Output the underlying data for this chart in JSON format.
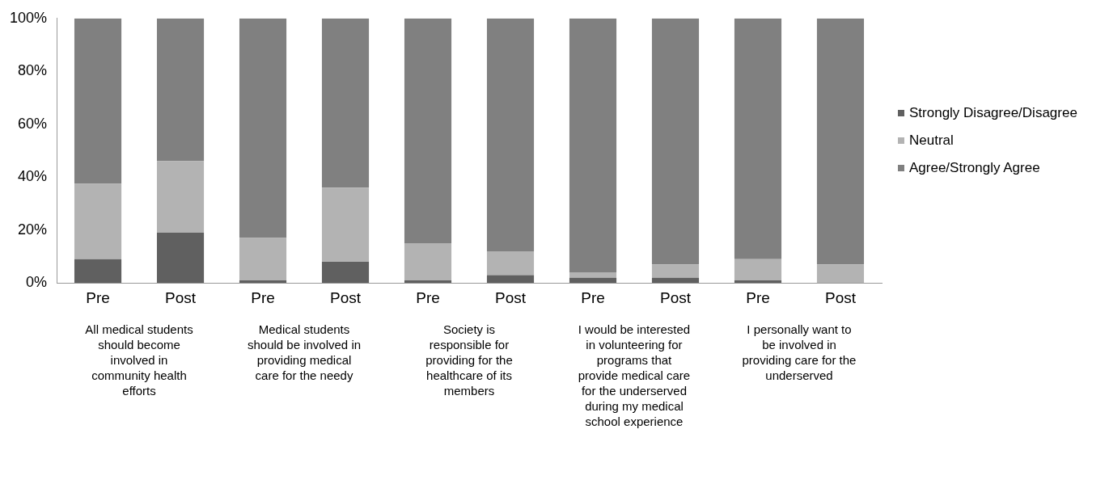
{
  "chart_data": {
    "type": "bar",
    "stacked": true,
    "categories": [
      "Pre",
      "Post",
      "Pre",
      "Post",
      "Pre",
      "Post",
      "Pre",
      "Post",
      "Pre",
      "Post"
    ],
    "series": [
      {
        "name": "Strongly Disagree/Disagree",
        "color": "#606060",
        "values": [
          9,
          19,
          1,
          8,
          1,
          3,
          2,
          2,
          1,
          0
        ]
      },
      {
        "name": "Neutral",
        "color": "#b3b3b3",
        "values": [
          28.5,
          27,
          16,
          28,
          14,
          9,
          2,
          5,
          8,
          7
        ]
      },
      {
        "name": "Agree/Strongly Agree",
        "color": "#808080",
        "values": [
          62.5,
          54,
          83,
          64,
          85,
          88,
          96,
          93,
          91,
          93
        ]
      }
    ],
    "ylim": [
      0,
      100
    ],
    "yticks": [
      {
        "value": 0,
        "label": "0%"
      },
      {
        "value": 20,
        "label": "20%"
      },
      {
        "value": 40,
        "label": "40%"
      },
      {
        "value": 60,
        "label": "60%"
      },
      {
        "value": 80,
        "label": "80%"
      },
      {
        "value": 100,
        "label": "100%"
      }
    ],
    "grid": false,
    "legend": "right",
    "annotations": [
      "All medical students should become involved in community health efforts",
      "Medical students should be involved in providing medical care for the needy",
      "Society is responsible for providing for the healthcare of its members",
      "I would be interested in volunteering for programs that provide medical care for the underserved during my medical school experience",
      "I personally want to be involved in providing care for the underserved"
    ]
  }
}
